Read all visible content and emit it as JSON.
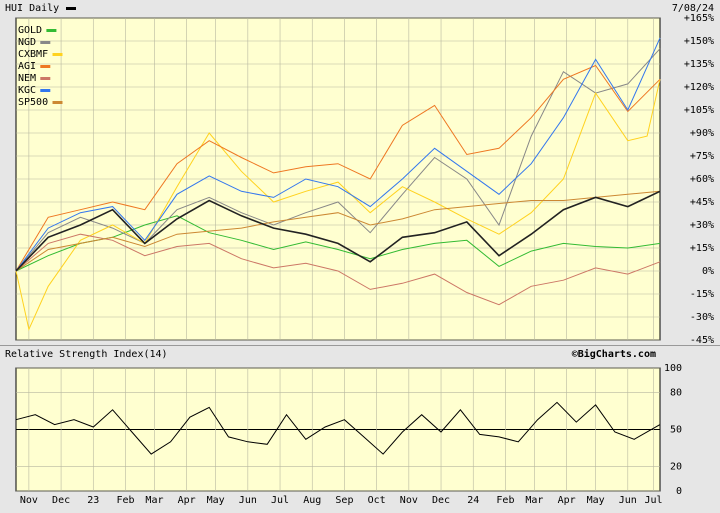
{
  "header": {
    "title": "HUI Daily",
    "date": "7/08/24"
  },
  "rsi_panel": {
    "title": "Relative Strength Index(14)",
    "watermark": "©BigCharts.com"
  },
  "chart_data": [
    {
      "type": "line",
      "name": "price-performance",
      "y_ticks": [
        "+165%",
        "+150%",
        "+135%",
        "+120%",
        "+105%",
        "+90%",
        "+75%",
        "+60%",
        "+45%",
        "+30%",
        "+15%",
        "0%",
        "-15%",
        "-30%",
        "-45%"
      ],
      "y_tick_values": [
        165,
        150,
        135,
        120,
        105,
        90,
        75,
        60,
        45,
        30,
        15,
        0,
        -15,
        -30,
        -45
      ],
      "ylim": [
        -45,
        165
      ],
      "x_ticks": [
        "Nov",
        "Dec",
        "23",
        "Feb",
        "Mar",
        "Apr",
        "May",
        "Jun",
        "Jul",
        "Aug",
        "Sep",
        "Oct",
        "Nov",
        "Dec",
        "24",
        "Feb",
        "Mar",
        "Apr",
        "May",
        "Jun",
        "Jul"
      ],
      "x_tick_values": [
        0.02,
        0.07,
        0.12,
        0.17,
        0.215,
        0.265,
        0.31,
        0.36,
        0.41,
        0.46,
        0.51,
        0.56,
        0.61,
        0.66,
        0.71,
        0.76,
        0.805,
        0.855,
        0.9,
        0.95,
        0.99
      ],
      "xlim": [
        0,
        1
      ],
      "grid": true,
      "legend_position": "top-left",
      "series": [
        {
          "name": "GOLD",
          "color": "#33bb33",
          "x": [
            0,
            0.05,
            0.1,
            0.15,
            0.2,
            0.25,
            0.3,
            0.35,
            0.4,
            0.45,
            0.5,
            0.55,
            0.6,
            0.65,
            0.7,
            0.75,
            0.8,
            0.85,
            0.9,
            0.95,
            1.0
          ],
          "values": [
            0,
            10,
            18,
            22,
            30,
            36,
            25,
            20,
            14,
            19,
            14,
            8,
            14,
            18,
            20,
            3,
            13,
            18,
            16,
            15,
            18
          ]
        },
        {
          "name": "NGD",
          "color": "#888888",
          "x": [
            0,
            0.05,
            0.1,
            0.15,
            0.2,
            0.25,
            0.3,
            0.35,
            0.4,
            0.45,
            0.5,
            0.55,
            0.6,
            0.65,
            0.7,
            0.75,
            0.8,
            0.85,
            0.9,
            0.95,
            1.0
          ],
          "values": [
            0,
            25,
            35,
            28,
            18,
            40,
            48,
            38,
            30,
            38,
            45,
            25,
            50,
            74,
            60,
            30,
            88,
            130,
            116,
            122,
            145
          ]
        },
        {
          "name": "CXBMF",
          "color": "#ffd21f",
          "x": [
            0,
            0.02,
            0.05,
            0.1,
            0.15,
            0.2,
            0.25,
            0.3,
            0.35,
            0.4,
            0.45,
            0.5,
            0.55,
            0.6,
            0.65,
            0.7,
            0.75,
            0.8,
            0.85,
            0.9,
            0.95,
            0.98,
            1.0
          ],
          "values": [
            0,
            -38,
            -10,
            20,
            30,
            18,
            55,
            90,
            65,
            45,
            52,
            58,
            38,
            55,
            45,
            34,
            24,
            38,
            60,
            116,
            85,
            88,
            125
          ]
        },
        {
          "name": "AGI",
          "color": "#ee7722",
          "x": [
            0,
            0.05,
            0.1,
            0.15,
            0.2,
            0.25,
            0.3,
            0.35,
            0.4,
            0.45,
            0.5,
            0.55,
            0.6,
            0.65,
            0.7,
            0.75,
            0.8,
            0.85,
            0.9,
            0.95,
            1.0
          ],
          "values": [
            0,
            35,
            40,
            45,
            40,
            70,
            85,
            74,
            64,
            68,
            70,
            60,
            95,
            108,
            76,
            80,
            100,
            125,
            134,
            104,
            125
          ]
        },
        {
          "name": "NEM",
          "color": "#cc7766",
          "x": [
            0,
            0.05,
            0.1,
            0.15,
            0.2,
            0.25,
            0.3,
            0.35,
            0.4,
            0.45,
            0.5,
            0.55,
            0.6,
            0.65,
            0.7,
            0.75,
            0.8,
            0.85,
            0.9,
            0.95,
            1.0
          ],
          "values": [
            0,
            18,
            24,
            20,
            10,
            16,
            18,
            8,
            2,
            5,
            0,
            -12,
            -8,
            -2,
            -14,
            -22,
            -10,
            -6,
            2,
            -2,
            6
          ]
        },
        {
          "name": "KGC",
          "color": "#3377ee",
          "x": [
            0,
            0.05,
            0.1,
            0.15,
            0.2,
            0.25,
            0.3,
            0.35,
            0.4,
            0.45,
            0.5,
            0.55,
            0.6,
            0.65,
            0.7,
            0.75,
            0.8,
            0.85,
            0.9,
            0.95,
            1.0
          ],
          "values": [
            0,
            28,
            38,
            42,
            20,
            50,
            62,
            52,
            48,
            60,
            55,
            42,
            60,
            80,
            65,
            50,
            70,
            100,
            138,
            105,
            152
          ]
        },
        {
          "name": "SP500",
          "color": "#cc8833",
          "x": [
            0,
            0.05,
            0.1,
            0.15,
            0.2,
            0.25,
            0.3,
            0.35,
            0.4,
            0.45,
            0.5,
            0.55,
            0.6,
            0.65,
            0.7,
            0.75,
            0.8,
            0.85,
            0.9,
            0.95,
            1.0
          ],
          "values": [
            0,
            14,
            18,
            22,
            16,
            24,
            26,
            28,
            32,
            35,
            38,
            30,
            34,
            40,
            42,
            44,
            46,
            46,
            48,
            50,
            52
          ]
        },
        {
          "name": "HUI",
          "color": "#222222",
          "x": [
            0,
            0.05,
            0.1,
            0.15,
            0.2,
            0.25,
            0.3,
            0.35,
            0.4,
            0.45,
            0.5,
            0.55,
            0.6,
            0.65,
            0.7,
            0.75,
            0.8,
            0.85,
            0.9,
            0.95,
            1.0
          ],
          "values": [
            0,
            22,
            30,
            40,
            18,
            34,
            46,
            36,
            28,
            24,
            18,
            6,
            22,
            25,
            32,
            10,
            24,
            40,
            48,
            42,
            52
          ]
        }
      ]
    },
    {
      "type": "line",
      "name": "rsi",
      "y_ticks": [
        "100",
        "80",
        "50",
        "20",
        "0"
      ],
      "y_tick_values": [
        100,
        80,
        50,
        20,
        0
      ],
      "ylim": [
        0,
        100
      ],
      "reference_line": 50,
      "grid": true,
      "series": [
        {
          "color": "#000000",
          "x": [
            0,
            0.03,
            0.06,
            0.09,
            0.12,
            0.15,
            0.18,
            0.21,
            0.24,
            0.27,
            0.3,
            0.33,
            0.36,
            0.39,
            0.42,
            0.45,
            0.48,
            0.51,
            0.54,
            0.57,
            0.6,
            0.63,
            0.66,
            0.69,
            0.72,
            0.75,
            0.78,
            0.81,
            0.84,
            0.87,
            0.9,
            0.93,
            0.96,
            1.0
          ],
          "values": [
            58,
            62,
            54,
            58,
            52,
            66,
            48,
            30,
            40,
            60,
            68,
            44,
            40,
            38,
            62,
            42,
            52,
            58,
            44,
            30,
            48,
            62,
            48,
            66,
            46,
            44,
            40,
            58,
            72,
            56,
            70,
            48,
            42,
            54
          ]
        }
      ]
    }
  ]
}
